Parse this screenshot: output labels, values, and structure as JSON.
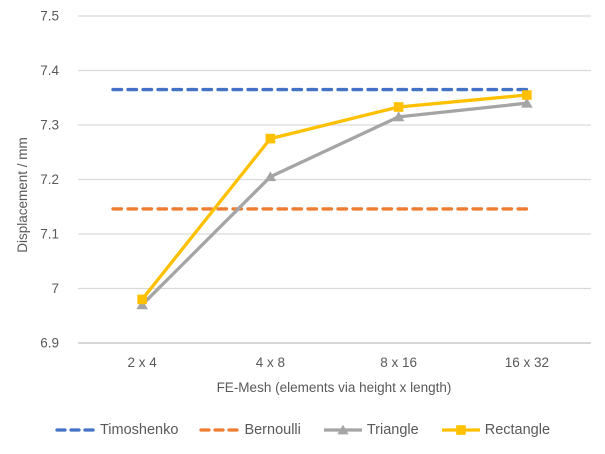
{
  "chart_data": {
    "type": "line",
    "title": "",
    "xlabel": "FE-Mesh (elements via height x length)",
    "ylabel": "Displacement / mm",
    "categories": [
      "2 x 4",
      "4 x 8",
      "8 x 16",
      "16 x 32"
    ],
    "ylim": [
      6.9,
      7.5
    ],
    "yticks": [
      {
        "value": 6.9,
        "label": "6.9"
      },
      {
        "value": 7.0,
        "label": "7"
      },
      {
        "value": 7.1,
        "label": "7.1"
      },
      {
        "value": 7.2,
        "label": "7.2"
      },
      {
        "value": 7.3,
        "label": "7.3"
      },
      {
        "value": 7.4,
        "label": "7.4"
      },
      {
        "value": 7.5,
        "label": "7.5"
      }
    ],
    "grid": true,
    "legend_position": "bottom",
    "series": [
      {
        "name": "Timoshenko",
        "line_style": "dashed",
        "marker": "none",
        "color": "#4472C4",
        "values": [
          7.365,
          7.365,
          7.365,
          7.365
        ]
      },
      {
        "name": "Bernoulli",
        "line_style": "dashed",
        "marker": "none",
        "color": "#ED7D31",
        "values": [
          7.146,
          7.146,
          7.146,
          7.146
        ]
      },
      {
        "name": "Triangle",
        "line_style": "solid",
        "marker": "triangle",
        "color": "#A5A5A5",
        "values": [
          6.97,
          7.205,
          7.315,
          7.34
        ]
      },
      {
        "name": "Rectangle",
        "line_style": "solid",
        "marker": "square",
        "color": "#FFC000",
        "values": [
          6.98,
          7.275,
          7.333,
          7.355
        ]
      }
    ],
    "colors": {
      "background": "#FFFFFF",
      "gridline": "#D9D9D9",
      "axis_line": "#BFBFBF",
      "text": "#595959"
    }
  }
}
